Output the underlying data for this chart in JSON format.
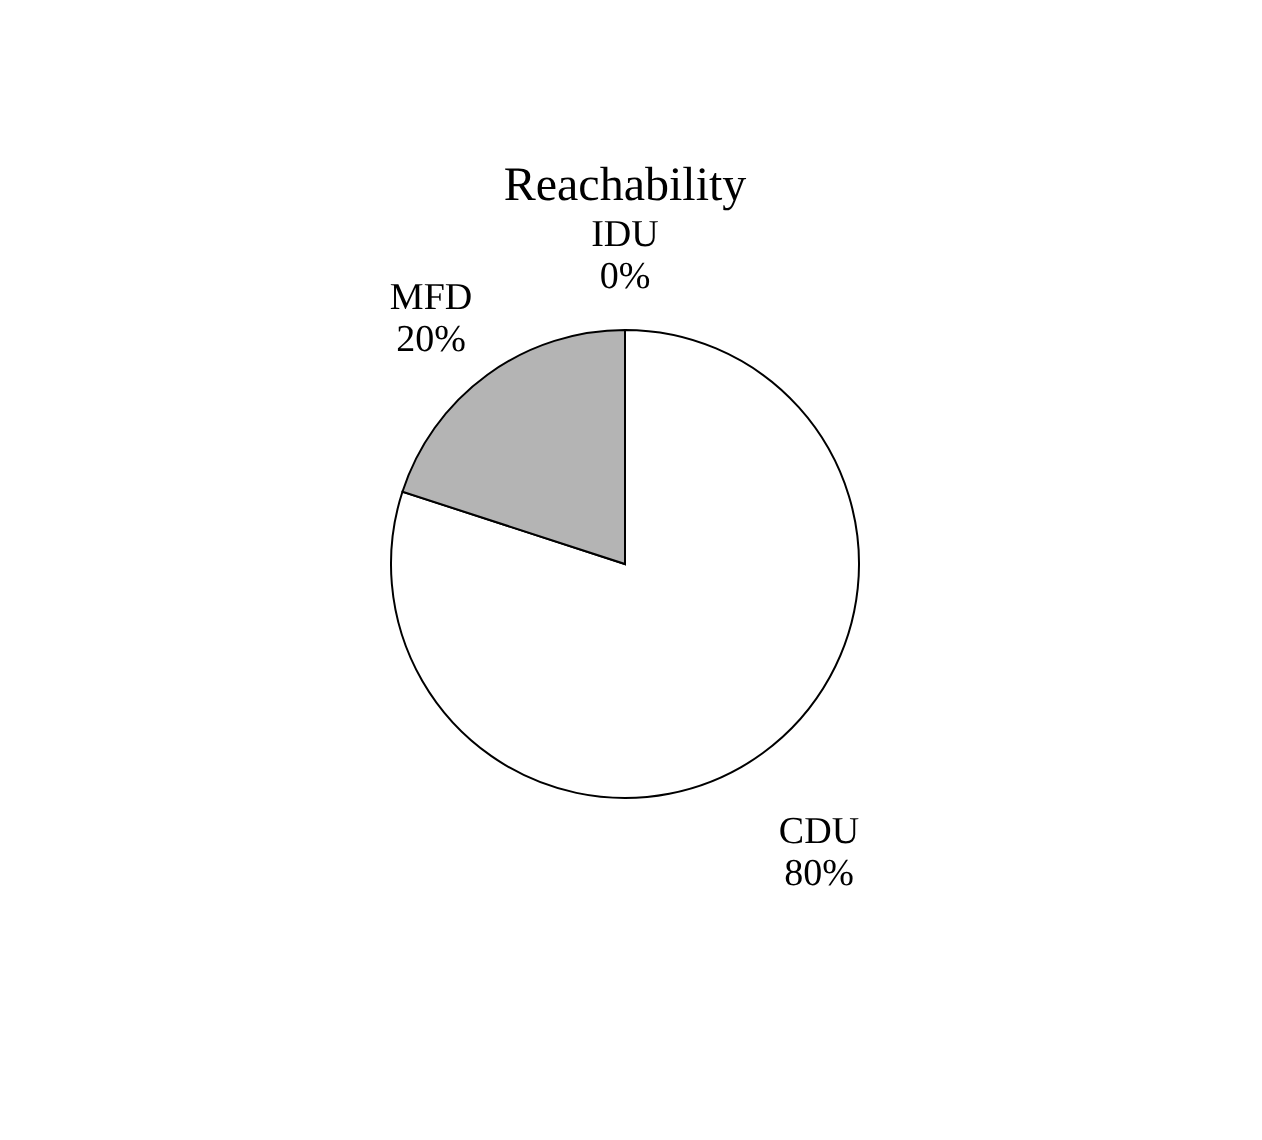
{
  "chart_data": {
    "type": "pie",
    "title": "Reachability",
    "categories": [
      "IDU",
      "CDU",
      "MFD"
    ],
    "values": [
      0,
      80,
      20
    ],
    "value_labels": [
      "0%",
      "80%",
      "20%"
    ],
    "colors": [
      "#808080",
      "#ffffff",
      "#b4b4b4"
    ],
    "legend": false
  }
}
